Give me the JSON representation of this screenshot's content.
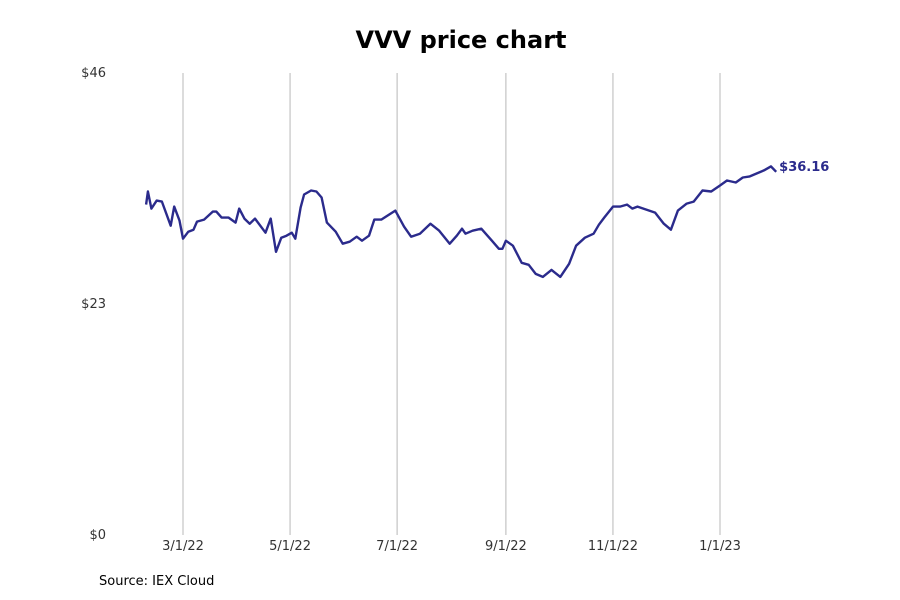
{
  "chart_data": {
    "type": "line",
    "title": "VVV price chart",
    "xlabel": "",
    "ylabel": "",
    "ylim": [
      0,
      46
    ],
    "y_ticks": [
      {
        "value": 0,
        "label": "$0"
      },
      {
        "value": 23,
        "label": "$23"
      },
      {
        "value": 46,
        "label": "$46"
      }
    ],
    "xlim": [
      "2022-02-01",
      "2023-02-28"
    ],
    "x_ticks": [
      {
        "date": "2022-03-01",
        "label": "3/1/22"
      },
      {
        "date": "2022-05-01",
        "label": "5/1/22"
      },
      {
        "date": "2022-07-01",
        "label": "7/1/22"
      },
      {
        "date": "2022-09-01",
        "label": "9/1/22"
      },
      {
        "date": "2022-11-01",
        "label": "11/1/22"
      },
      {
        "date": "2023-01-01",
        "label": "1/1/23"
      }
    ],
    "grid": "vertical",
    "line_color": "#2b2b8c",
    "end_label": "$36.16",
    "series": [
      {
        "x": [
          "2022-02-08",
          "2022-02-09",
          "2022-02-11",
          "2022-02-14",
          "2022-02-17",
          "2022-02-22",
          "2022-02-24",
          "2022-02-27",
          "2022-03-01",
          "2022-03-04",
          "2022-03-07",
          "2022-03-09",
          "2022-03-13",
          "2022-03-18",
          "2022-03-20",
          "2022-03-23",
          "2022-03-27",
          "2022-03-31",
          "2022-04-02",
          "2022-04-05",
          "2022-04-08",
          "2022-04-11",
          "2022-04-17",
          "2022-04-20",
          "2022-04-23",
          "2022-04-26",
          "2022-04-29",
          "2022-05-02",
          "2022-05-04",
          "2022-05-07",
          "2022-05-09",
          "2022-05-13",
          "2022-05-16",
          "2022-05-19",
          "2022-05-22",
          "2022-05-27",
          "2022-05-31",
          "2022-06-04",
          "2022-06-08",
          "2022-06-11",
          "2022-06-15",
          "2022-06-18",
          "2022-06-22",
          "2022-06-30",
          "2022-07-05",
          "2022-07-09",
          "2022-07-14",
          "2022-07-20",
          "2022-07-25",
          "2022-07-31",
          "2022-08-04",
          "2022-08-07",
          "2022-08-09",
          "2022-08-13",
          "2022-08-18",
          "2022-08-24",
          "2022-08-28",
          "2022-08-30",
          "2022-09-01",
          "2022-09-05",
          "2022-09-10",
          "2022-09-14",
          "2022-09-18",
          "2022-09-22",
          "2022-09-27",
          "2022-10-02",
          "2022-10-07",
          "2022-10-11",
          "2022-10-16",
          "2022-10-21",
          "2022-10-24",
          "2022-10-27",
          "2022-11-01",
          "2022-11-05",
          "2022-11-09",
          "2022-11-12",
          "2022-11-15",
          "2022-11-20",
          "2022-11-25",
          "2022-11-30",
          "2022-12-04",
          "2022-12-08",
          "2022-12-13",
          "2022-12-17",
          "2022-12-22",
          "2022-12-27",
          "2023-01-01",
          "2023-01-05",
          "2023-01-10",
          "2023-01-14",
          "2023-01-18",
          "2023-01-22",
          "2023-01-26",
          "2023-01-30",
          "2023-02-02"
        ],
        "y": [
          32.9,
          34.2,
          32.5,
          33.3,
          33.2,
          30.8,
          32.7,
          31.3,
          29.5,
          30.2,
          30.4,
          31.2,
          31.4,
          32.2,
          32.2,
          31.6,
          31.6,
          31.1,
          32.5,
          31.5,
          31.0,
          31.5,
          30.1,
          31.5,
          28.2,
          29.6,
          29.8,
          30.1,
          29.5,
          32.6,
          33.9,
          34.3,
          34.2,
          33.6,
          31.1,
          30.2,
          29.0,
          29.2,
          29.7,
          29.3,
          29.8,
          31.4,
          31.4,
          32.3,
          30.7,
          29.7,
          30.0,
          31.0,
          30.3,
          29.0,
          29.8,
          30.5,
          30.0,
          30.3,
          30.5,
          29.3,
          28.5,
          28.5,
          29.3,
          28.8,
          27.1,
          26.9,
          26.0,
          25.7,
          26.4,
          25.7,
          27.0,
          28.8,
          29.6,
          30.0,
          30.9,
          31.6,
          32.7,
          32.7,
          32.9,
          32.5,
          32.7,
          32.4,
          32.1,
          31.0,
          30.4,
          32.3,
          33.0,
          33.2,
          34.3,
          34.2,
          34.8,
          35.3,
          35.1,
          35.6,
          35.7,
          36.0,
          36.3,
          36.7,
          36.16
        ]
      }
    ]
  },
  "source": "Source: IEX Cloud"
}
